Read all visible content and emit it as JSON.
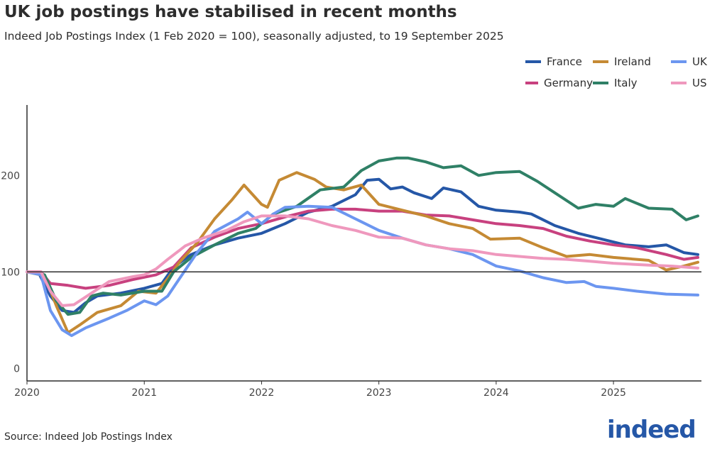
{
  "chart_data": {
    "type": "line",
    "title": "UK job postings have stabilised in recent months",
    "subtitle": "Indeed Job Postings Index (1 Feb 2020 = 100), seasonally adjusted, to 19 September 2025",
    "source": "Source: Indeed Job Postings Index",
    "logo": "indeed",
    "xlabel": "",
    "ylabel": "",
    "xlim": [
      2020,
      2025.75
    ],
    "ylim": [
      -13,
      273
    ],
    "x_ticks": [
      "2020",
      "2021",
      "2022",
      "2023",
      "2024",
      "2025"
    ],
    "y_ticks": [
      "0",
      "100",
      "200"
    ],
    "reference_line": 100,
    "legend_position": "top-right",
    "series": [
      {
        "name": "France",
        "color": "#2557a7",
        "x": [
          2020,
          2020.1,
          2020.2,
          2020.3,
          2020.4,
          2020.5,
          2020.6,
          2020.8,
          2021,
          2021.15,
          2021.25,
          2021.4,
          2021.6,
          2021.8,
          2022,
          2022.2,
          2022.4,
          2022.6,
          2022.8,
          2022.9,
          2023,
          2023.1,
          2023.2,
          2023.3,
          2023.45,
          2023.55,
          2023.7,
          2023.85,
          2024,
          2024.2,
          2024.3,
          2024.5,
          2024.7,
          2024.9,
          2025.1,
          2025.3,
          2025.45,
          2025.6,
          2025.72
        ],
        "y": [
          100,
          99,
          75,
          60,
          58,
          68,
          75,
          78,
          83,
          88,
          105,
          118,
          128,
          135,
          140,
          150,
          162,
          168,
          180,
          195,
          196,
          186,
          188,
          182,
          176,
          187,
          183,
          168,
          164,
          162,
          160,
          148,
          140,
          134,
          128,
          126,
          128,
          120,
          118
        ]
      },
      {
        "name": "Germany",
        "color": "#c8417f",
        "x": [
          2020,
          2020.12,
          2020.2,
          2020.35,
          2020.5,
          2020.7,
          2020.9,
          2021.1,
          2021.25,
          2021.4,
          2021.6,
          2021.8,
          2022,
          2022.2,
          2022.4,
          2022.6,
          2022.8,
          2023,
          2023.2,
          2023.4,
          2023.6,
          2023.8,
          2024,
          2024.2,
          2024.4,
          2024.6,
          2024.8,
          2025,
          2025.2,
          2025.45,
          2025.6,
          2025.72
        ],
        "y": [
          100,
          100,
          88,
          86,
          83,
          86,
          92,
          97,
          105,
          125,
          136,
          145,
          150,
          157,
          163,
          165,
          165,
          163,
          163,
          159,
          158,
          154,
          150,
          148,
          145,
          137,
          132,
          128,
          125,
          118,
          113,
          115
        ]
      },
      {
        "name": "Ireland",
        "color": "#c58a34",
        "x": [
          2020,
          2020.15,
          2020.25,
          2020.35,
          2020.45,
          2020.6,
          2020.8,
          2020.95,
          2021.1,
          2021.2,
          2021.3,
          2021.45,
          2021.6,
          2021.75,
          2021.85,
          2022,
          2022.05,
          2022.15,
          2022.3,
          2022.45,
          2022.55,
          2022.7,
          2022.85,
          2023,
          2023.2,
          2023.4,
          2023.6,
          2023.8,
          2023.95,
          2024.2,
          2024.4,
          2024.6,
          2024.8,
          2025,
          2025.3,
          2025.45,
          2025.6,
          2025.72
        ],
        "y": [
          100,
          96,
          65,
          37,
          45,
          58,
          65,
          80,
          78,
          93,
          110,
          130,
          155,
          175,
          190,
          170,
          167,
          195,
          203,
          196,
          188,
          185,
          190,
          170,
          164,
          158,
          150,
          145,
          134,
          135,
          125,
          116,
          118,
          115,
          112,
          102,
          106,
          110
        ]
      },
      {
        "name": "Italy",
        "color": "#2f8066",
        "x": [
          2020,
          2020.15,
          2020.25,
          2020.35,
          2020.45,
          2020.55,
          2020.65,
          2020.8,
          2021,
          2021.15,
          2021.25,
          2021.4,
          2021.6,
          2021.8,
          2021.95,
          2022.1,
          2022.3,
          2022.5,
          2022.7,
          2022.85,
          2023,
          2023.15,
          2023.25,
          2023.4,
          2023.55,
          2023.7,
          2023.85,
          2024,
          2024.2,
          2024.35,
          2024.5,
          2024.7,
          2024.85,
          2025,
          2025.1,
          2025.3,
          2025.5,
          2025.62,
          2025.72
        ],
        "y": [
          100,
          97,
          70,
          56,
          58,
          75,
          78,
          76,
          80,
          80,
          100,
          115,
          128,
          140,
          145,
          160,
          168,
          185,
          188,
          205,
          215,
          218,
          218,
          214,
          208,
          210,
          200,
          203,
          204,
          194,
          182,
          166,
          170,
          168,
          176,
          166,
          165,
          154,
          158
        ]
      },
      {
        "name": "UK",
        "color": "#6c96f0",
        "x": [
          2020,
          2020.12,
          2020.2,
          2020.3,
          2020.38,
          2020.5,
          2020.7,
          2020.85,
          2021,
          2021.1,
          2021.2,
          2021.3,
          2021.45,
          2021.6,
          2021.8,
          2021.88,
          2022,
          2022.1,
          2022.2,
          2022.4,
          2022.6,
          2022.8,
          2023,
          2023.2,
          2023.4,
          2023.6,
          2023.8,
          2024,
          2024.2,
          2024.4,
          2024.6,
          2024.75,
          2024.85,
          2025,
          2025.2,
          2025.45,
          2025.72
        ],
        "y": [
          100,
          97,
          60,
          40,
          34,
          42,
          52,
          60,
          70,
          66,
          75,
          93,
          120,
          142,
          155,
          162,
          150,
          160,
          167,
          168,
          167,
          155,
          143,
          135,
          128,
          124,
          118,
          106,
          101,
          94,
          89,
          90,
          85,
          83,
          80,
          77,
          76
        ]
      },
      {
        "name": "US",
        "color": "#ef98bd",
        "x": [
          2020,
          2020.12,
          2020.2,
          2020.3,
          2020.4,
          2020.55,
          2020.7,
          2020.9,
          2021,
          2021.1,
          2021.2,
          2021.35,
          2021.5,
          2021.7,
          2021.85,
          2022,
          2022.2,
          2022.4,
          2022.6,
          2022.8,
          2023,
          2023.2,
          2023.4,
          2023.6,
          2023.8,
          2024,
          2024.2,
          2024.4,
          2024.6,
          2024.8,
          2025,
          2025.3,
          2025.5,
          2025.72
        ],
        "y": [
          100,
          100,
          80,
          65,
          66,
          78,
          90,
          95,
          97,
          103,
          113,
          127,
          135,
          143,
          152,
          158,
          158,
          155,
          148,
          143,
          136,
          135,
          128,
          124,
          122,
          118,
          116,
          114,
          113,
          111,
          109,
          107,
          106,
          104
        ]
      }
    ]
  }
}
